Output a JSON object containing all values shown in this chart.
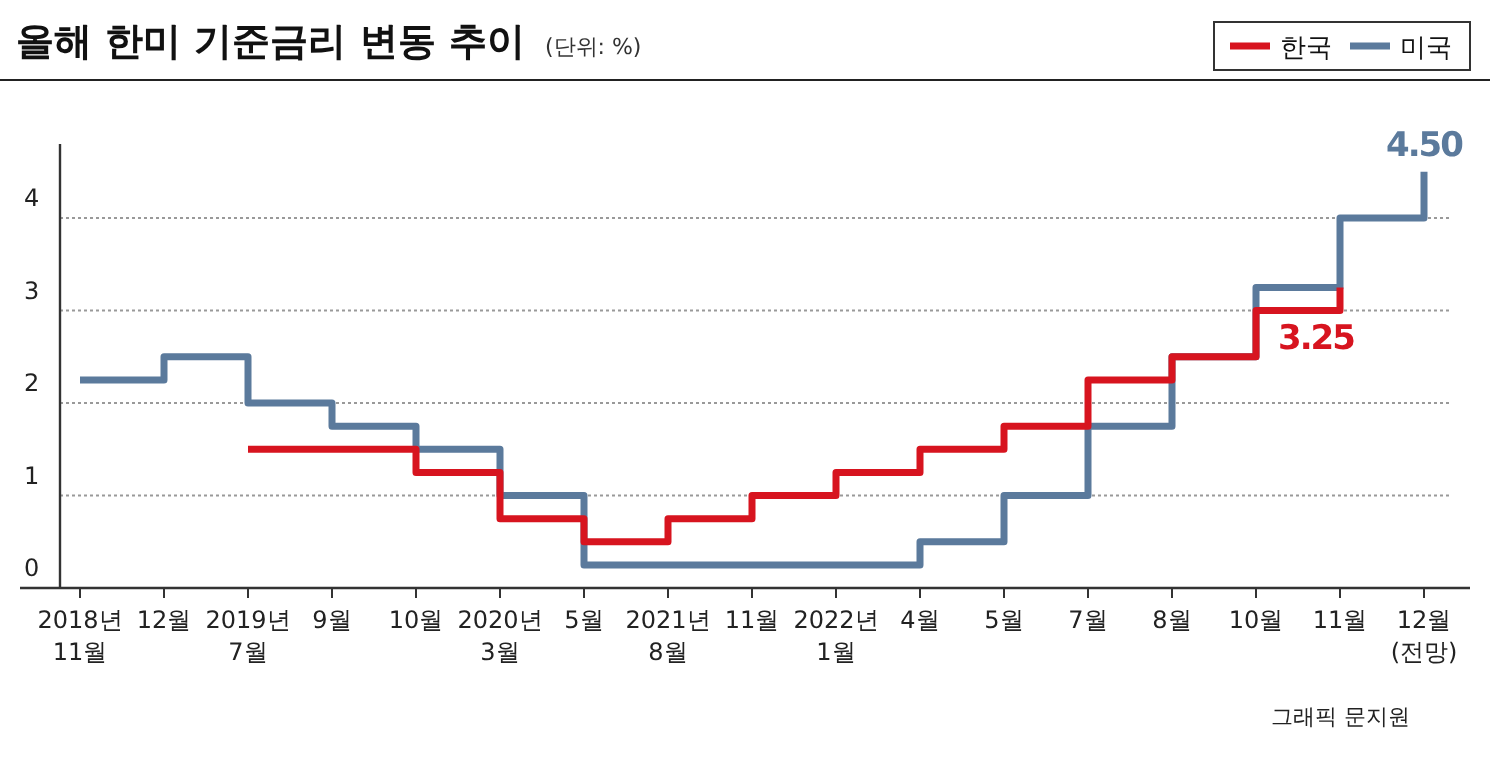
{
  "chart_data": {
    "type": "step",
    "title": "올해 한미 기준금리 변동 추이",
    "subtitle": "(단위: %)",
    "categories": [
      "2018년\n11월",
      "12월",
      "2019년\n7월",
      "9월",
      "10월",
      "2020년\n3월",
      "5월",
      "2021년\n8월",
      "11월",
      "2022년\n1월",
      "4월",
      "5월",
      "7월",
      "8월",
      "10월",
      "11월",
      "12월\n(전망)"
    ],
    "series": [
      {
        "name": "한국",
        "color": "#d7141f",
        "values": [
          null,
          null,
          1.5,
          1.5,
          1.25,
          0.75,
          0.5,
          0.75,
          1.0,
          1.25,
          1.5,
          1.75,
          2.25,
          2.5,
          3.0,
          3.25,
          null
        ],
        "value_labels": [
          null,
          null,
          null,
          null,
          null,
          null,
          null,
          null,
          null,
          null,
          null,
          null,
          null,
          null,
          null,
          "3.25",
          null
        ]
      },
      {
        "name": "미국",
        "color": "#5b7a9c",
        "values": [
          2.25,
          2.5,
          2.0,
          1.75,
          1.5,
          1.0,
          0.25,
          0.25,
          0.25,
          0.25,
          0.5,
          1.0,
          1.75,
          2.5,
          3.25,
          4.0,
          4.5
        ],
        "value_labels": [
          null,
          null,
          null,
          null,
          null,
          null,
          null,
          null,
          null,
          null,
          null,
          null,
          null,
          null,
          null,
          null,
          "4.50"
        ]
      }
    ],
    "ylim": [
      0,
      4.8
    ],
    "yticks": [
      0,
      1,
      2,
      3,
      4
    ],
    "grid": "y",
    "legend": "top right",
    "annotations": [
      "그래픽 문지원"
    ]
  }
}
